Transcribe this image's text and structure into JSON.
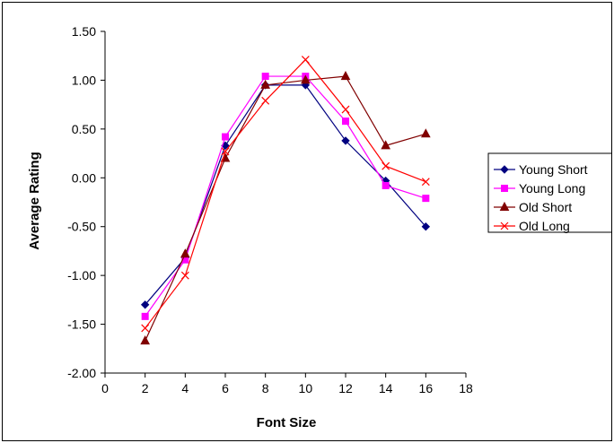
{
  "chart_data": {
    "type": "line",
    "title": "",
    "xlabel": "Font Size",
    "ylabel": "Average Rating",
    "xlim": [
      0,
      18
    ],
    "ylim": [
      -2.0,
      1.5
    ],
    "x_ticks": [
      "0",
      "2",
      "4",
      "6",
      "8",
      "10",
      "12",
      "14",
      "16",
      "18"
    ],
    "y_ticks": [
      "1.50",
      "1.00",
      "0.50",
      "0.00",
      "-0.50",
      "-1.00",
      "-1.50",
      "-2.00"
    ],
    "grid": false,
    "legend_position": "right",
    "x": [
      2,
      4,
      6,
      8,
      10,
      12,
      14,
      16
    ],
    "series": [
      {
        "name": "Young Short",
        "color": "#000080",
        "marker": "diamond",
        "values": [
          -1.3,
          -0.82,
          0.33,
          0.95,
          0.95,
          0.38,
          -0.03,
          -0.5
        ]
      },
      {
        "name": "Young Long",
        "color": "#FF00FF",
        "marker": "square",
        "values": [
          -1.42,
          -0.84,
          0.42,
          1.04,
          1.04,
          0.58,
          -0.08,
          -0.21
        ]
      },
      {
        "name": "Old Short",
        "color": "#800000",
        "marker": "triangle",
        "values": [
          -1.67,
          -0.78,
          0.2,
          0.95,
          1.0,
          1.04,
          0.33,
          0.45
        ]
      },
      {
        "name": "Old Long",
        "color": "#FF0000",
        "marker": "x",
        "values": [
          -1.54,
          -1.0,
          0.27,
          0.79,
          1.21,
          0.7,
          0.12,
          -0.04
        ]
      }
    ]
  }
}
